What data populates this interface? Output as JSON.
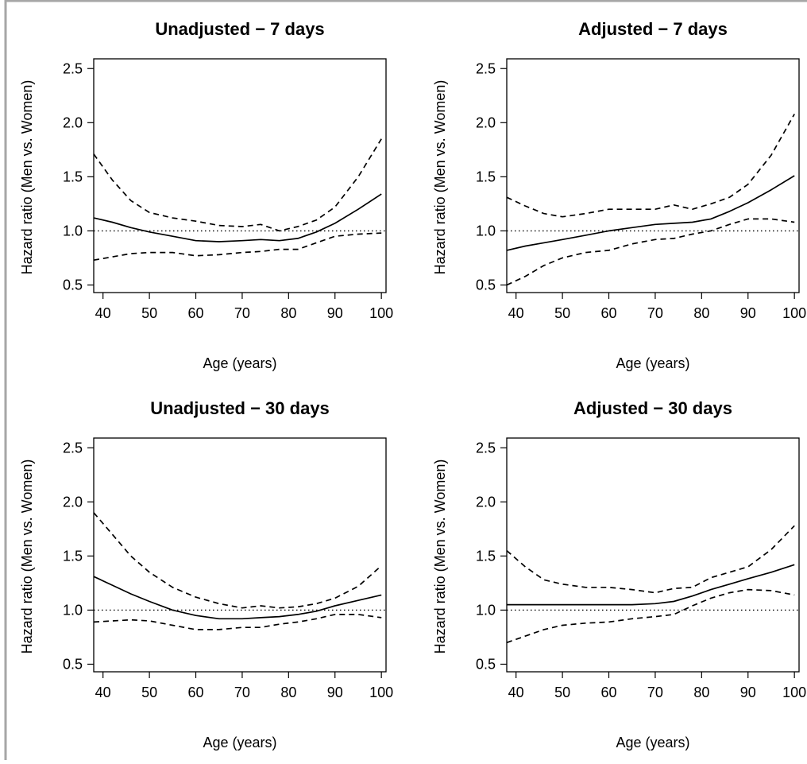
{
  "colors": {
    "line": "#000000",
    "frame": "#a6a6a6",
    "background": "#ffffff"
  },
  "chart_data": [
    {
      "type": "line",
      "title": "Unadjusted − 7 days",
      "xlabel": "Age (years)",
      "ylabel": "Hazard ratio (Men vs. Women)",
      "xlim": [
        38,
        101
      ],
      "ylim": [
        0.43,
        2.59
      ],
      "xticks": [
        40,
        50,
        60,
        70,
        80,
        90,
        100
      ],
      "yticks": [
        0.5,
        1.0,
        1.5,
        2.0,
        2.5
      ],
      "ytick_labels": [
        "0.5",
        "1.0",
        "1.5",
        "2.0",
        "2.5"
      ],
      "reference_line": 1.0,
      "x": [
        38,
        42,
        46,
        50,
        55,
        60,
        65,
        70,
        74,
        78,
        82,
        86,
        90,
        95,
        100
      ],
      "series": [
        {
          "style": "solid",
          "values": [
            1.12,
            1.08,
            1.03,
            0.99,
            0.95,
            0.91,
            0.9,
            0.91,
            0.92,
            0.91,
            0.93,
            0.99,
            1.07,
            1.2,
            1.34
          ]
        },
        {
          "style": "dashed",
          "values": [
            1.71,
            1.47,
            1.28,
            1.17,
            1.12,
            1.09,
            1.05,
            1.04,
            1.06,
            1.0,
            1.04,
            1.1,
            1.22,
            1.5,
            1.85
          ]
        },
        {
          "style": "dashed",
          "values": [
            0.73,
            0.76,
            0.79,
            0.8,
            0.8,
            0.77,
            0.78,
            0.8,
            0.81,
            0.83,
            0.83,
            0.89,
            0.95,
            0.97,
            0.98
          ]
        }
      ]
    },
    {
      "type": "line",
      "title": "Adjusted − 7 days",
      "xlabel": "Age (years)",
      "ylabel": "Hazard ratio (Men vs. Women)",
      "xlim": [
        38,
        101
      ],
      "ylim": [
        0.43,
        2.59
      ],
      "xticks": [
        40,
        50,
        60,
        70,
        80,
        90,
        100
      ],
      "yticks": [
        0.5,
        1.0,
        1.5,
        2.0,
        2.5
      ],
      "ytick_labels": [
        "0.5",
        "1.0",
        "1.5",
        "2.0",
        "2.5"
      ],
      "reference_line": 1.0,
      "x": [
        38,
        42,
        46,
        50,
        55,
        60,
        65,
        70,
        74,
        78,
        82,
        86,
        90,
        95,
        100
      ],
      "series": [
        {
          "style": "solid",
          "values": [
            0.82,
            0.86,
            0.89,
            0.92,
            0.96,
            1.0,
            1.03,
            1.06,
            1.07,
            1.08,
            1.11,
            1.18,
            1.26,
            1.38,
            1.51
          ]
        },
        {
          "style": "dashed",
          "values": [
            1.31,
            1.23,
            1.16,
            1.13,
            1.16,
            1.2,
            1.2,
            1.2,
            1.24,
            1.2,
            1.25,
            1.31,
            1.43,
            1.7,
            2.08
          ]
        },
        {
          "style": "dashed",
          "values": [
            0.5,
            0.58,
            0.68,
            0.75,
            0.8,
            0.82,
            0.88,
            0.92,
            0.93,
            0.97,
            1.0,
            1.06,
            1.11,
            1.11,
            1.08
          ]
        }
      ]
    },
    {
      "type": "line",
      "title": "Unadjusted − 30 days",
      "xlabel": "Age (years)",
      "ylabel": "Hazard ratio (Men vs. Women)",
      "xlim": [
        38,
        101
      ],
      "ylim": [
        0.43,
        2.59
      ],
      "xticks": [
        40,
        50,
        60,
        70,
        80,
        90,
        100
      ],
      "yticks": [
        0.5,
        1.0,
        1.5,
        2.0,
        2.5
      ],
      "ytick_labels": [
        "0.5",
        "1.0",
        "1.5",
        "2.0",
        "2.5"
      ],
      "reference_line": 1.0,
      "x": [
        38,
        42,
        46,
        50,
        55,
        60,
        65,
        70,
        74,
        78,
        82,
        86,
        90,
        95,
        100
      ],
      "series": [
        {
          "style": "solid",
          "values": [
            1.31,
            1.23,
            1.15,
            1.08,
            1.0,
            0.95,
            0.92,
            0.92,
            0.93,
            0.94,
            0.96,
            0.99,
            1.04,
            1.09,
            1.14
          ]
        },
        {
          "style": "dashed",
          "values": [
            1.9,
            1.7,
            1.5,
            1.35,
            1.21,
            1.12,
            1.06,
            1.02,
            1.04,
            1.02,
            1.03,
            1.06,
            1.11,
            1.22,
            1.41
          ]
        },
        {
          "style": "dashed",
          "values": [
            0.89,
            0.9,
            0.91,
            0.9,
            0.86,
            0.82,
            0.82,
            0.84,
            0.84,
            0.87,
            0.89,
            0.92,
            0.96,
            0.96,
            0.93
          ]
        }
      ]
    },
    {
      "type": "line",
      "title": "Adjusted − 30 days",
      "xlabel": "Age (years)",
      "ylabel": "Hazard ratio (Men vs. Women)",
      "xlim": [
        38,
        101
      ],
      "ylim": [
        0.43,
        2.59
      ],
      "xticks": [
        40,
        50,
        60,
        70,
        80,
        90,
        100
      ],
      "yticks": [
        0.5,
        1.0,
        1.5,
        2.0,
        2.5
      ],
      "ytick_labels": [
        "0.5",
        "1.0",
        "1.5",
        "2.0",
        "2.5"
      ],
      "reference_line": 1.0,
      "x": [
        38,
        42,
        46,
        50,
        55,
        60,
        65,
        70,
        74,
        78,
        82,
        86,
        90,
        95,
        100
      ],
      "series": [
        {
          "style": "solid",
          "values": [
            1.05,
            1.05,
            1.05,
            1.05,
            1.05,
            1.05,
            1.05,
            1.06,
            1.08,
            1.13,
            1.19,
            1.24,
            1.29,
            1.35,
            1.42
          ]
        },
        {
          "style": "dashed",
          "values": [
            1.55,
            1.4,
            1.28,
            1.24,
            1.21,
            1.21,
            1.19,
            1.16,
            1.2,
            1.21,
            1.3,
            1.35,
            1.4,
            1.56,
            1.78
          ]
        },
        {
          "style": "dashed",
          "values": [
            0.7,
            0.76,
            0.82,
            0.86,
            0.88,
            0.89,
            0.92,
            0.94,
            0.96,
            1.04,
            1.11,
            1.16,
            1.19,
            1.18,
            1.14
          ]
        }
      ]
    }
  ]
}
